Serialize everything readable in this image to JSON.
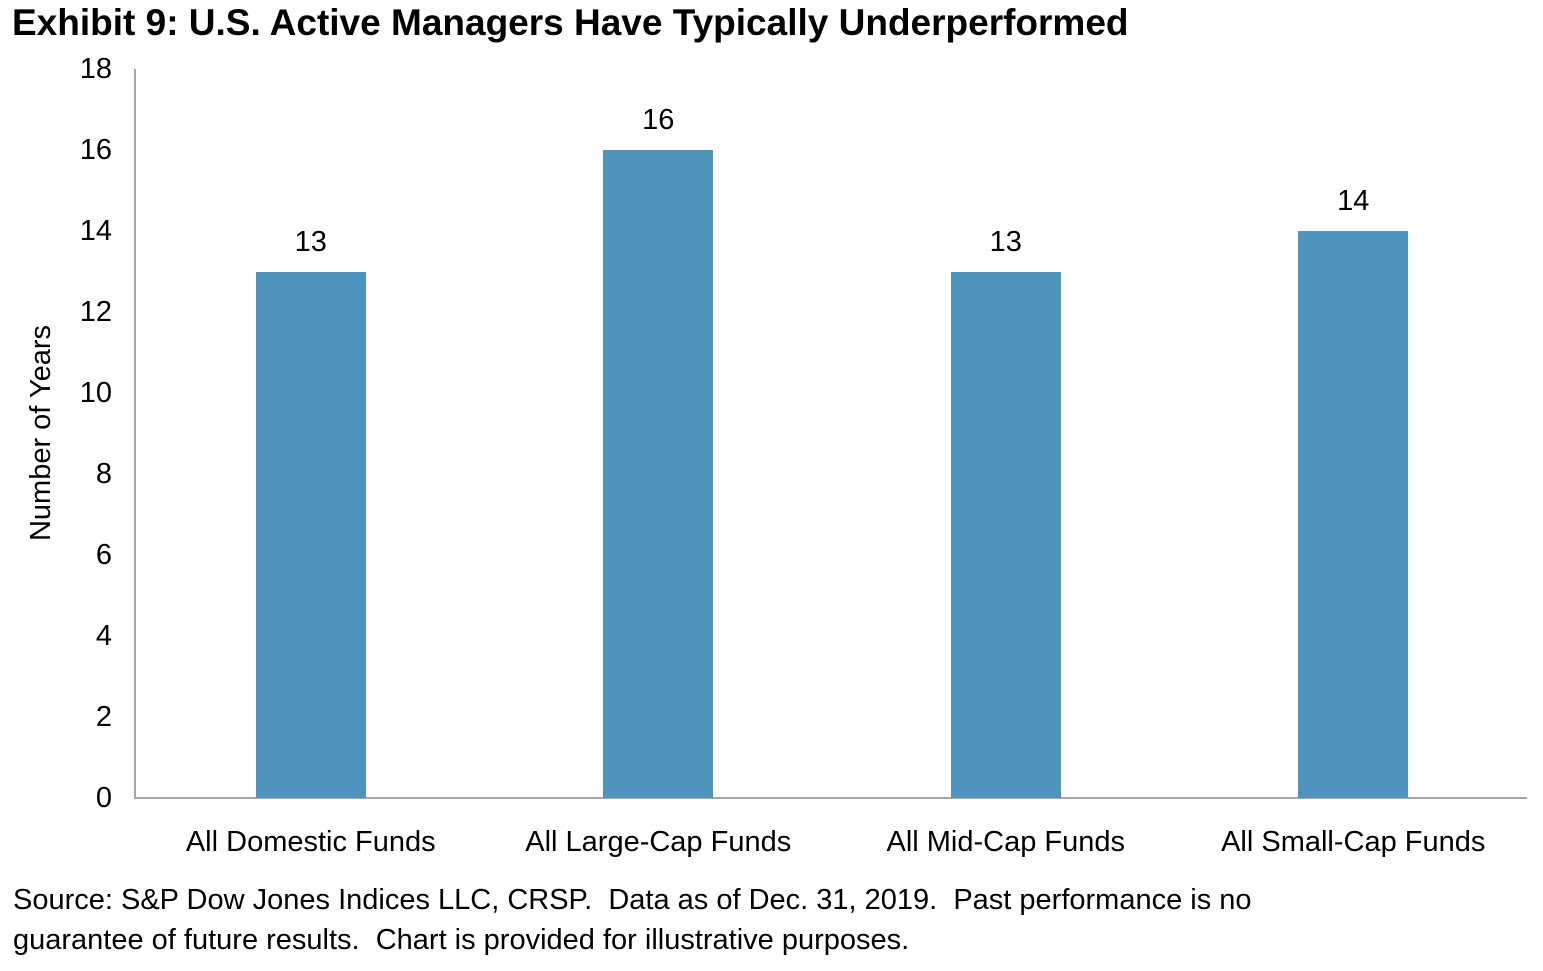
{
  "title": "Exhibit 9: U.S. Active Managers Have Typically Underperformed",
  "source_note": "Source: S&P Dow Jones Indices LLC, CRSP.  Data as of Dec. 31, 2019.  Past performance is no\nguarantee of future results.  Chart is provided for illustrative purposes.",
  "colors": {
    "bar": "#4e94bb",
    "axis": "#a6a6a6",
    "text": "#000000",
    "background": "#ffffff"
  },
  "chart_data": {
    "type": "bar",
    "title": "Exhibit 9: U.S. Active Managers Have Typically Underperformed",
    "categories": [
      "All Domestic Funds",
      "All Large-Cap Funds",
      "All Mid-Cap Funds",
      "All Small-Cap Funds"
    ],
    "values": [
      13,
      16,
      13,
      14
    ],
    "data_labels": [
      "13",
      "16",
      "13",
      "14"
    ],
    "xlabel": "",
    "ylabel": "Number of Years",
    "ylim": [
      0,
      18
    ],
    "ytick_step": 2,
    "ytick_labels": [
      "0",
      "2",
      "4",
      "6",
      "8",
      "10",
      "12",
      "14",
      "16",
      "18"
    ],
    "grid": false,
    "legend": false,
    "bar_orientation": "vertical"
  }
}
